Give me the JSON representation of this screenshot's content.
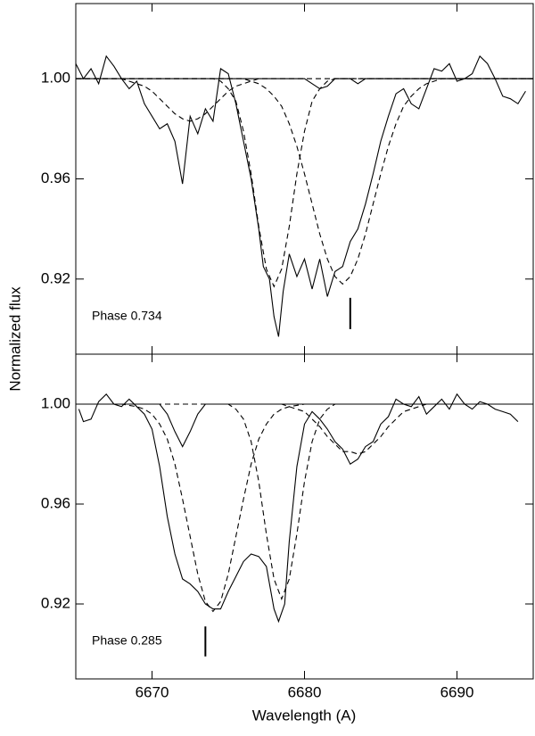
{
  "chart_data": [
    {
      "type": "line",
      "annotation": "Phase 0.734",
      "ylabel": "Normalized flux",
      "xlim": [
        6665,
        6695
      ],
      "ylim": [
        0.89,
        1.03
      ],
      "xticks": [
        6670,
        6680,
        6690
      ],
      "show_xtick_labels": false,
      "yticks": [
        0.92,
        0.96,
        {
          "value": 1,
          "label": "1.00"
        }
      ],
      "marker": {
        "x": 6683,
        "y0": 0.9,
        "y1": 0.9125
      },
      "series": [
        {
          "style": "solid",
          "color": "#000000",
          "x": [
            6665,
            6665.5,
            6666,
            6666.5,
            6667,
            6667.5,
            6668,
            6668.5,
            6669,
            6669.5,
            6670,
            6670.5,
            6671,
            6671.5,
            6672,
            6672.5,
            6673,
            6673.5,
            6674,
            6674.5,
            6675,
            6675.5,
            6676,
            6676.5,
            6677,
            6677.3,
            6677.7,
            6678,
            6678.3,
            6678.6,
            6679,
            6679.5,
            6680,
            6680.5,
            6681,
            6681.5,
            6682,
            6682.5,
            6683,
            6683.5,
            6684,
            6684.5,
            6685,
            6685.5,
            6686,
            6686.5,
            6687,
            6687.5,
            6688,
            6688.5,
            6689,
            6689.5,
            6690,
            6690.5,
            6691,
            6691.5,
            6692,
            6692.5,
            6693,
            6693.5,
            6694,
            6694.5
          ],
          "values": [
            1.006,
            1.0,
            1.004,
            0.998,
            1.009,
            1.005,
            1.0,
            0.996,
            0.999,
            0.99,
            0.985,
            0.98,
            0.982,
            0.975,
            0.958,
            0.985,
            0.978,
            0.988,
            0.983,
            1.004,
            1.002,
            0.99,
            0.975,
            0.96,
            0.94,
            0.925,
            0.92,
            0.905,
            0.897,
            0.915,
            0.93,
            0.921,
            0.928,
            0.916,
            0.928,
            0.913,
            0.923,
            0.925,
            0.935,
            0.94,
            0.95,
            0.962,
            0.975,
            0.985,
            0.994,
            0.996,
            0.99,
            0.988,
            0.996,
            1.004,
            1.003,
            1.006,
            0.999,
            1.0,
            1.002,
            1.009,
            1.006,
            1.0,
            0.993,
            0.992,
            0.99,
            0.995
          ]
        },
        {
          "style": "dashed",
          "color": "#000000",
          "x": [
            6665,
            6667.5,
            6668,
            6668.5,
            6669,
            6669.5,
            6670,
            6670.5,
            6671,
            6671.5,
            6672,
            6672.5,
            6673,
            6673.5,
            6674,
            6674.5,
            6675,
            6675.5,
            6676,
            6676.5,
            6677,
            6677.5,
            6695
          ],
          "values": [
            1,
            1,
            1,
            0.999,
            0.998,
            0.997,
            0.995,
            0.992,
            0.989,
            0.986,
            0.984,
            0.983,
            0.984,
            0.986,
            0.989,
            0.992,
            0.995,
            0.997,
            0.998,
            0.999,
            1,
            1,
            1
          ]
        },
        {
          "style": "dashed",
          "color": "#000000",
          "x": [
            6665,
            6674,
            6674.5,
            6675,
            6675.5,
            6676,
            6676.5,
            6677,
            6677.5,
            6678,
            6678.5,
            6679,
            6679.5,
            6680,
            6680.5,
            6681,
            6681.5,
            6682,
            6695
          ],
          "values": [
            1,
            1,
            0.999,
            0.996,
            0.991,
            0.979,
            0.962,
            0.941,
            0.924,
            0.917,
            0.924,
            0.941,
            0.962,
            0.979,
            0.991,
            0.996,
            0.999,
            1,
            1
          ]
        },
        {
          "style": "dashed",
          "color": "#000000",
          "x": [
            6665,
            6676,
            6676.5,
            6677,
            6677.5,
            6678,
            6678.5,
            6679,
            6679.5,
            6680,
            6680.5,
            6681,
            6681.5,
            6682,
            6682.5,
            6683,
            6683.5,
            6684,
            6684.5,
            6685,
            6685.5,
            6686,
            6686.5,
            6687,
            6687.5,
            6688,
            6688.5,
            6689,
            6695
          ],
          "values": [
            1,
            1,
            0.999,
            0.998,
            0.996,
            0.993,
            0.989,
            0.982,
            0.973,
            0.962,
            0.95,
            0.938,
            0.928,
            0.921,
            0.918,
            0.921,
            0.928,
            0.938,
            0.95,
            0.962,
            0.973,
            0.982,
            0.989,
            0.993,
            0.996,
            0.998,
            0.999,
            1,
            1
          ]
        },
        {
          "style": "solid",
          "color": "#000000",
          "x": [
            6665,
            6680,
            6680.5,
            6681,
            6681.5,
            6682,
            6683,
            6683.5,
            6684,
            6695
          ],
          "values": [
            1,
            1,
            0.998,
            0.996,
            0.997,
            1,
            1,
            0.998,
            1,
            1
          ]
        }
      ]
    },
    {
      "type": "line",
      "annotation": "Phase 0.285",
      "xlabel": "Wavelength (A)",
      "xlim": [
        6665,
        6695
      ],
      "ylim": [
        0.89,
        1.02
      ],
      "xticks": [
        6670,
        6680,
        6690
      ],
      "show_xtick_labels": true,
      "yticks": [
        0.92,
        0.96,
        {
          "value": 1,
          "label": "1.00"
        }
      ],
      "marker": {
        "x": 6673.5,
        "y0": 0.899,
        "y1": 0.911
      },
      "series": [
        {
          "style": "solid",
          "color": "#000000",
          "x": [
            6665.2,
            6665.5,
            6666,
            6666.5,
            6667,
            6667.5,
            6668,
            6668.5,
            6669,
            6669.5,
            6670,
            6670.5,
            6671,
            6671.5,
            6672,
            6672.5,
            6673,
            6673.5,
            6674,
            6674.5,
            6675,
            6675.5,
            6676,
            6676.5,
            6677,
            6677.5,
            6678,
            6678.3,
            6678.7,
            6679,
            6679.5,
            6680,
            6680.5,
            6681,
            6681.5,
            6682,
            6682.5,
            6683,
            6683.5,
            6684,
            6684.5,
            6685,
            6685.5,
            6686,
            6686.5,
            6687,
            6687.5,
            6688,
            6688.5,
            6689,
            6689.5,
            6690,
            6690.5,
            6691,
            6691.5,
            6692,
            6692.5,
            6693,
            6693.5,
            6694
          ],
          "values": [
            0.998,
            0.993,
            0.994,
            1.001,
            1.004,
            1.0,
            0.999,
            1.002,
            0.999,
            0.996,
            0.99,
            0.975,
            0.955,
            0.94,
            0.93,
            0.928,
            0.925,
            0.92,
            0.918,
            0.918,
            0.925,
            0.931,
            0.937,
            0.94,
            0.939,
            0.935,
            0.918,
            0.913,
            0.92,
            0.945,
            0.975,
            0.992,
            0.997,
            0.994,
            0.99,
            0.985,
            0.982,
            0.976,
            0.978,
            0.983,
            0.985,
            0.992,
            0.995,
            1.002,
            1.0,
            0.999,
            1.003,
            0.996,
            0.999,
            1.002,
            0.998,
            1.004,
            1.0,
            0.998,
            1.001,
            1.0,
            0.998,
            0.997,
            0.996,
            0.993
          ]
        },
        {
          "style": "solid",
          "color": "#000000",
          "x": [
            6665,
            6670.5,
            6671,
            6671.5,
            6672,
            6672.5,
            6673,
            6673.5,
            6695
          ],
          "values": [
            1,
            1,
            0.996,
            0.989,
            0.983,
            0.989,
            0.996,
            1,
            1
          ]
        },
        {
          "style": "dashed",
          "color": "#000000",
          "x": [
            6665,
            6668,
            6669,
            6669.5,
            6670,
            6670.5,
            6671,
            6671.5,
            6672,
            6672.5,
            6673,
            6673.5,
            6674,
            6674.5,
            6675,
            6675.5,
            6676,
            6676.5,
            6677,
            6677.5,
            6678,
            6678.5,
            6679,
            6680,
            6695
          ],
          "values": [
            1,
            1,
            0.999,
            0.998,
            0.996,
            0.992,
            0.986,
            0.976,
            0.962,
            0.947,
            0.932,
            0.921,
            0.917,
            0.921,
            0.932,
            0.947,
            0.962,
            0.976,
            0.986,
            0.992,
            0.996,
            0.998,
            0.999,
            1,
            1
          ]
        },
        {
          "style": "dashed",
          "color": "#000000",
          "x": [
            6665,
            6675,
            6675.5,
            6676,
            6676.5,
            6677,
            6677.5,
            6678,
            6678.5,
            6679,
            6679.5,
            6680,
            6680.5,
            6681,
            6681.5,
            6682,
            6695
          ],
          "values": [
            1,
            1,
            0.998,
            0.994,
            0.985,
            0.969,
            0.948,
            0.93,
            0.922,
            0.93,
            0.948,
            0.969,
            0.985,
            0.994,
            0.998,
            1,
            1
          ]
        },
        {
          "style": "dashed",
          "color": "#000000",
          "x": [
            6665,
            6678.5,
            6679,
            6679.5,
            6680,
            6680.5,
            6681,
            6681.5,
            6682,
            6682.5,
            6683,
            6683.5,
            6684,
            6684.5,
            6685,
            6685.5,
            6686,
            6686.5,
            6687,
            6687.5,
            6688,
            6695
          ],
          "values": [
            1,
            1,
            0.999,
            0.998,
            0.997,
            0.994,
            0.991,
            0.987,
            0.984,
            0.981,
            0.981,
            0.98,
            0.981,
            0.984,
            0.987,
            0.991,
            0.994,
            0.997,
            0.998,
            0.999,
            1,
            1
          ]
        }
      ]
    }
  ]
}
